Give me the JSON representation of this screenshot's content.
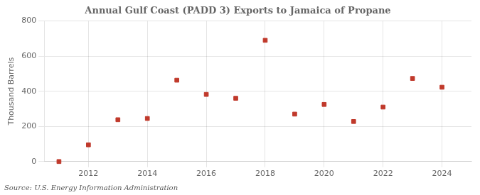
{
  "chart_data": {
    "type": "scatter",
    "title": "Annual Gulf Coast (PADD 3) Exports to Jamaica of Propane",
    "ylabel": "Thousand Barrels",
    "annotations": [
      "Source: U.S. Energy Information Administration"
    ],
    "x": [
      2011,
      2012,
      2013,
      2014,
      2015,
      2016,
      2017,
      2018,
      2019,
      2020,
      2021,
      2022,
      2023,
      2024
    ],
    "values": [
      0,
      95,
      238,
      245,
      463,
      382,
      360,
      690,
      270,
      325,
      228,
      310,
      473,
      423
    ],
    "color": "#c0392b",
    "marker": "square",
    "xlim": [
      2010.5,
      2025.0
    ],
    "xticks": [
      2012,
      2014,
      2016,
      2018,
      2020,
      2022,
      2024
    ],
    "ylim": [
      0,
      800
    ],
    "yticks": [
      0,
      200,
      400,
      600,
      800
    ],
    "grid": true
  }
}
